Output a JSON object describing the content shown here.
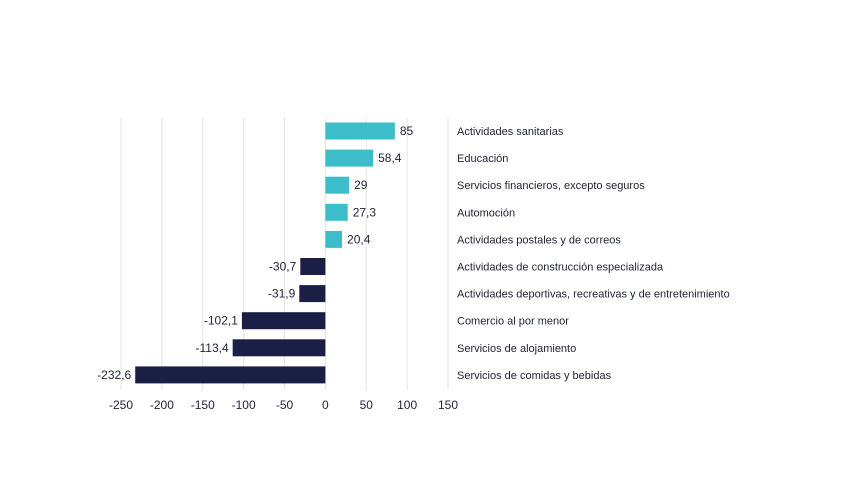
{
  "chart_data": {
    "type": "bar",
    "orientation": "horizontal",
    "title": "",
    "xlabel": "",
    "ylabel": "",
    "xlim": [
      -250,
      150
    ],
    "xticks": [
      "-250",
      "-200",
      "-150",
      "-100",
      "-50",
      "0",
      "50",
      "100",
      "150"
    ],
    "grid": true,
    "legend": "none",
    "categories": [
      "Actividades sanitarias",
      "Educación",
      "Servicios financieros, excepto seguros",
      "Automoción",
      "Actividades postales y de correos",
      "Actividades de construcción especializada",
      "Actividades deportivas, recreativas y de entretenimiento",
      "Comercio al por menor",
      "Servicios de alojamiento",
      "Servicios de comidas y bebidas"
    ],
    "values": [
      85,
      58.4,
      29,
      27.3,
      20.4,
      -30.7,
      -31.9,
      -102.1,
      -113.4,
      -232.6
    ],
    "value_labels": [
      "85",
      "58,4",
      "29",
      "27,3",
      "20,4",
      "-30,7",
      "-31,9",
      "-102,1",
      "-113,4",
      "-232,6"
    ],
    "colors": {
      "positive": "#3dbdc9",
      "negative": "#1b1f45"
    }
  }
}
